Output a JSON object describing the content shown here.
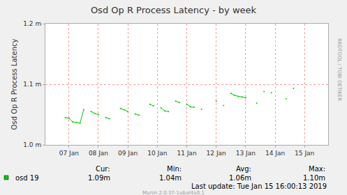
{
  "chart_data": {
    "type": "line",
    "title": "Osd Op R Process Latency - by week",
    "y_label": "Osd Op R Process Latency",
    "categories": [
      null,
      null,
      "07 Jan",
      null,
      null,
      null,
      null,
      null,
      null,
      null,
      "08 Jan",
      null,
      null,
      null,
      null,
      null,
      null,
      null,
      "09 Jan",
      null,
      null,
      null,
      null,
      null,
      null,
      null,
      "10 Jan",
      null,
      null,
      null,
      null,
      null,
      null,
      null,
      "11 Jan",
      null,
      null,
      null,
      null,
      null,
      null,
      null,
      "12 Jan",
      null,
      null,
      null,
      null,
      null,
      null,
      null,
      "13 Jan",
      null,
      null,
      null,
      null,
      null,
      null,
      null,
      "14 Jan",
      null,
      null,
      null,
      null,
      null,
      null,
      null,
      "15 Jan",
      null,
      null
    ],
    "series": [
      {
        "name": "osd 19",
        "color": "#00cc00",
        "values": [
          null,
          1.045,
          1.044,
          1.038,
          1.037,
          1.036,
          1.058,
          null,
          1.055,
          1.052,
          1.05,
          null,
          1.045,
          1.043,
          null,
          null,
          1.06,
          1.058,
          1.055,
          null,
          1.051,
          1.049,
          null,
          null,
          1.067,
          1.064,
          null,
          1.061,
          1.056,
          1.055,
          null,
          1.072,
          1.07,
          null,
          1.067,
          1.063,
          1.062,
          null,
          1.059,
          null,
          null,
          null,
          1.072,
          null,
          1.065,
          null,
          1.085,
          1.082,
          1.08,
          1.079,
          1.078,
          null,
          null,
          1.069,
          null,
          1.088,
          null,
          1.086,
          null,
          null,
          null,
          1.076,
          null,
          1.093,
          null,
          null,
          null,
          null,
          null
        ]
      }
    ],
    "ylim": [
      1.0,
      1.2
    ],
    "yticks": [
      {
        "value": 1.0,
        "label": "1.0 m"
      },
      {
        "value": 1.1,
        "label": "1.1 m"
      },
      {
        "value": 1.2,
        "label": "1.2 m"
      }
    ],
    "grid": true,
    "summary": [
      {
        "label": "Cur:",
        "value": 1.09,
        "text": "1.09m"
      },
      {
        "label": "Min:",
        "value": 1.04,
        "text": "1.04m"
      },
      {
        "label": "Avg:",
        "value": 1.06,
        "text": "1.06m"
      },
      {
        "label": "Max:",
        "value": 1.1,
        "text": "1.10m"
      }
    ],
    "footer": "Last update: Tue Jan 15 16:00:13 2019",
    "credit": "Munin 2.0.37-1ubuntu0.1",
    "side_text": "RRDTOOL / TOBI OETIKER"
  }
}
